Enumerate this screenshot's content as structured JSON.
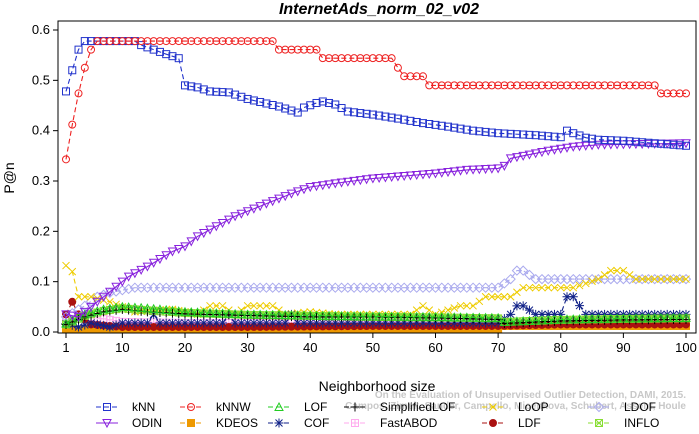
{
  "chart_data": {
    "type": "line",
    "title": "InternetAds_norm_02_v02",
    "xlabel": "Neighborhood size",
    "ylabel": "P@n",
    "xlim": [
      1,
      100
    ],
    "ylim": [
      0,
      0.6
    ],
    "xticks": [
      1,
      10,
      20,
      30,
      40,
      50,
      60,
      70,
      80,
      90,
      100
    ],
    "yticks": [
      0.0,
      0.1,
      0.2,
      0.3,
      0.4,
      0.5,
      0.6
    ],
    "grid": false,
    "legend_position": "bottom",
    "watermark": [
      "Campos, Zimek, Sander, Campello, Micenkova, Schubert, Assent, Houle",
      "On the Evaluation of Unsupervised Outlier Detection, DAMI, 2015."
    ],
    "series": [
      {
        "name": "kNN",
        "color": "#2233cc",
        "marker": "square",
        "dash": "5,3",
        "points": [
          [
            1,
            0.478
          ],
          [
            2,
            0.52
          ],
          [
            3,
            0.561
          ],
          [
            4,
            0.578
          ],
          [
            6,
            0.578
          ],
          [
            8,
            0.578
          ],
          [
            12,
            0.578
          ],
          [
            13,
            0.57
          ],
          [
            15,
            0.561
          ],
          [
            17,
            0.552
          ],
          [
            19,
            0.544
          ],
          [
            20,
            0.49
          ],
          [
            22,
            0.486
          ],
          [
            24,
            0.478
          ],
          [
            27,
            0.476
          ],
          [
            30,
            0.463
          ],
          [
            33,
            0.454
          ],
          [
            35,
            0.448
          ],
          [
            37,
            0.44
          ],
          [
            38,
            0.436
          ],
          [
            39,
            0.446
          ],
          [
            41,
            0.455
          ],
          [
            42,
            0.458
          ],
          [
            44,
            0.452
          ],
          [
            46,
            0.438
          ],
          [
            50,
            0.432
          ],
          [
            54,
            0.424
          ],
          [
            58,
            0.415
          ],
          [
            62,
            0.408
          ],
          [
            66,
            0.4
          ],
          [
            70,
            0.395
          ],
          [
            76,
            0.391
          ],
          [
            80,
            0.387
          ],
          [
            81,
            0.4
          ],
          [
            82,
            0.395
          ],
          [
            84,
            0.386
          ],
          [
            86,
            0.382
          ],
          [
            90,
            0.38
          ],
          [
            95,
            0.375
          ],
          [
            98,
            0.372
          ],
          [
            100,
            0.37
          ]
        ]
      },
      {
        "name": "kNNW",
        "color": "#ee2222",
        "marker": "circle",
        "dash": "5,3",
        "points": [
          [
            1,
            0.343
          ],
          [
            2,
            0.412
          ],
          [
            3,
            0.474
          ],
          [
            4,
            0.525
          ],
          [
            5,
            0.561
          ],
          [
            6,
            0.578
          ],
          [
            10,
            0.578
          ],
          [
            20,
            0.578
          ],
          [
            30,
            0.578
          ],
          [
            34,
            0.578
          ],
          [
            35,
            0.561
          ],
          [
            41,
            0.561
          ],
          [
            42,
            0.544
          ],
          [
            50,
            0.544
          ],
          [
            53,
            0.544
          ],
          [
            54,
            0.525
          ],
          [
            55,
            0.508
          ],
          [
            58,
            0.508
          ],
          [
            59,
            0.49
          ],
          [
            70,
            0.49
          ],
          [
            80,
            0.49
          ],
          [
            95,
            0.49
          ],
          [
            96,
            0.474
          ],
          [
            100,
            0.474
          ]
        ]
      },
      {
        "name": "LOF",
        "color": "#22cc22",
        "marker": "triangle-up",
        "dash": "5,3",
        "points": [
          [
            1,
            0.017
          ],
          [
            4,
            0.035
          ],
          [
            7,
            0.045
          ],
          [
            10,
            0.05
          ],
          [
            13,
            0.048
          ],
          [
            16,
            0.045
          ],
          [
            20,
            0.04
          ],
          [
            30,
            0.035
          ],
          [
            40,
            0.033
          ],
          [
            50,
            0.031
          ],
          [
            60,
            0.03
          ],
          [
            70,
            0.028
          ],
          [
            71,
            0.02
          ],
          [
            80,
            0.025
          ],
          [
            90,
            0.027
          ],
          [
            100,
            0.028
          ]
        ]
      },
      {
        "name": "SimplifiedLOF",
        "color": "#000000",
        "marker": "plus",
        "dash": "5,3",
        "points": [
          [
            1,
            0.015
          ],
          [
            4,
            0.03
          ],
          [
            7,
            0.04
          ],
          [
            10,
            0.045
          ],
          [
            14,
            0.04
          ],
          [
            20,
            0.036
          ],
          [
            30,
            0.033
          ],
          [
            40,
            0.03
          ],
          [
            50,
            0.03
          ],
          [
            60,
            0.028
          ],
          [
            70,
            0.025
          ],
          [
            71,
            0.017
          ],
          [
            80,
            0.022
          ],
          [
            90,
            0.024
          ],
          [
            100,
            0.025
          ]
        ]
      },
      {
        "name": "LoOP",
        "color": "#eecc00",
        "marker": "x",
        "dash": "5,3",
        "points": [
          [
            1,
            0.132
          ],
          [
            2,
            0.12
          ],
          [
            3,
            0.07
          ],
          [
            5,
            0.07
          ],
          [
            8,
            0.06
          ],
          [
            12,
            0.04
          ],
          [
            18,
            0.045
          ],
          [
            22,
            0.035
          ],
          [
            24,
            0.052
          ],
          [
            26,
            0.052
          ],
          [
            28,
            0.035
          ],
          [
            30,
            0.052
          ],
          [
            34,
            0.052
          ],
          [
            36,
            0.035
          ],
          [
            40,
            0.04
          ],
          [
            44,
            0.035
          ],
          [
            50,
            0.035
          ],
          [
            56,
            0.035
          ],
          [
            58,
            0.052
          ],
          [
            60,
            0.035
          ],
          [
            64,
            0.052
          ],
          [
            66,
            0.052
          ],
          [
            68,
            0.07
          ],
          [
            72,
            0.07
          ],
          [
            74,
            0.088
          ],
          [
            78,
            0.088
          ],
          [
            82,
            0.088
          ],
          [
            86,
            0.105
          ],
          [
            88,
            0.122
          ],
          [
            90,
            0.122
          ],
          [
            92,
            0.105
          ],
          [
            96,
            0.105
          ],
          [
            100,
            0.105
          ]
        ]
      },
      {
        "name": "LDOF",
        "color": "#aaaaee",
        "marker": "diamond",
        "dash": "5,3",
        "points": [
          [
            1,
            0.03
          ],
          [
            4,
            0.052
          ],
          [
            6,
            0.07
          ],
          [
            8,
            0.078
          ],
          [
            12,
            0.088
          ],
          [
            20,
            0.088
          ],
          [
            40,
            0.088
          ],
          [
            60,
            0.088
          ],
          [
            70,
            0.088
          ],
          [
            72,
            0.105
          ],
          [
            73,
            0.122
          ],
          [
            74,
            0.122
          ],
          [
            76,
            0.105
          ],
          [
            85,
            0.105
          ],
          [
            100,
            0.105
          ]
        ]
      },
      {
        "name": "ODIN",
        "color": "#8822dd",
        "marker": "triangle-down",
        "dash": "",
        "points": [
          [
            1,
            0.035
          ],
          [
            3,
            0.03
          ],
          [
            5,
            0.05
          ],
          [
            7,
            0.07
          ],
          [
            9,
            0.09
          ],
          [
            11,
            0.11
          ],
          [
            14,
            0.13
          ],
          [
            18,
            0.16
          ],
          [
            20,
            0.17
          ],
          [
            22,
            0.19
          ],
          [
            25,
            0.21
          ],
          [
            28,
            0.23
          ],
          [
            31,
            0.245
          ],
          [
            34,
            0.26
          ],
          [
            37,
            0.275
          ],
          [
            40,
            0.288
          ],
          [
            45,
            0.297
          ],
          [
            50,
            0.305
          ],
          [
            55,
            0.31
          ],
          [
            60,
            0.315
          ],
          [
            65,
            0.322
          ],
          [
            70,
            0.325
          ],
          [
            71,
            0.33
          ],
          [
            72,
            0.345
          ],
          [
            74,
            0.35
          ],
          [
            78,
            0.36
          ],
          [
            82,
            0.368
          ],
          [
            86,
            0.372
          ],
          [
            100,
            0.375
          ]
        ]
      },
      {
        "name": "KDEOS",
        "color": "#ee9900",
        "marker": "square-filled",
        "dash": "5,3",
        "points": [
          [
            1,
            0.005
          ],
          [
            10,
            0.005
          ],
          [
            20,
            0.005
          ],
          [
            40,
            0.005
          ],
          [
            60,
            0.005
          ],
          [
            70,
            0.005
          ],
          [
            71,
            0.012
          ],
          [
            80,
            0.012
          ],
          [
            100,
            0.012
          ]
        ]
      },
      {
        "name": "COF",
        "color": "#112288",
        "marker": "star",
        "dash": "5,3",
        "points": [
          [
            1,
            0.017
          ],
          [
            3,
            0.01
          ],
          [
            5,
            0.018
          ],
          [
            8,
            0.01
          ],
          [
            10,
            0.018
          ],
          [
            14,
            0.018
          ],
          [
            15,
            0.035
          ],
          [
            16,
            0.018
          ],
          [
            24,
            0.018
          ],
          [
            26,
            0.018
          ],
          [
            27,
            0.035
          ],
          [
            28,
            0.018
          ],
          [
            36,
            0.018
          ],
          [
            37,
            0.035
          ],
          [
            38,
            0.018
          ],
          [
            50,
            0.018
          ],
          [
            60,
            0.018
          ],
          [
            70,
            0.018
          ],
          [
            72,
            0.035
          ],
          [
            73,
            0.052
          ],
          [
            74,
            0.052
          ],
          [
            76,
            0.035
          ],
          [
            80,
            0.035
          ],
          [
            81,
            0.07
          ],
          [
            82,
            0.07
          ],
          [
            84,
            0.035
          ],
          [
            95,
            0.035
          ],
          [
            100,
            0.035
          ]
        ]
      },
      {
        "name": "FastABOD",
        "color": "#ffaaee",
        "marker": "plus-sq",
        "dash": "5,3",
        "points": [
          [
            1,
            0.022
          ],
          [
            5,
            0.03
          ],
          [
            10,
            0.02
          ],
          [
            20,
            0.018
          ],
          [
            30,
            0.018
          ],
          [
            50,
            0.018
          ],
          [
            70,
            0.018
          ],
          [
            80,
            0.018
          ],
          [
            100,
            0.018
          ]
        ]
      },
      {
        "name": "LDF",
        "color": "#aa1111",
        "marker": "circle-filled",
        "dash": "5,3",
        "points": [
          [
            1,
            0.035
          ],
          [
            2,
            0.06
          ],
          [
            3,
            0.035
          ],
          [
            5,
            0.015
          ],
          [
            10,
            0.01
          ],
          [
            30,
            0.01
          ],
          [
            50,
            0.012
          ],
          [
            70,
            0.012
          ],
          [
            80,
            0.015
          ],
          [
            100,
            0.015
          ]
        ]
      },
      {
        "name": "INFLO",
        "color": "#88dd33",
        "marker": "square-x",
        "dash": "5,3",
        "points": [
          [
            1,
            0.015
          ],
          [
            4,
            0.032
          ],
          [
            7,
            0.042
          ],
          [
            10,
            0.047
          ],
          [
            14,
            0.043
          ],
          [
            20,
            0.038
          ],
          [
            30,
            0.034
          ],
          [
            40,
            0.032
          ],
          [
            50,
            0.03
          ],
          [
            60,
            0.029
          ],
          [
            70,
            0.027
          ],
          [
            71,
            0.02
          ],
          [
            80,
            0.024
          ],
          [
            90,
            0.026
          ],
          [
            100,
            0.027
          ]
        ]
      }
    ],
    "legend_order": [
      "kNN",
      "kNNW",
      "LOF",
      "SimplifiedLOF",
      "LoOP",
      "LDOF",
      "ODIN",
      "KDEOS",
      "COF",
      "FastABOD",
      "LDF",
      "INFLO"
    ]
  }
}
